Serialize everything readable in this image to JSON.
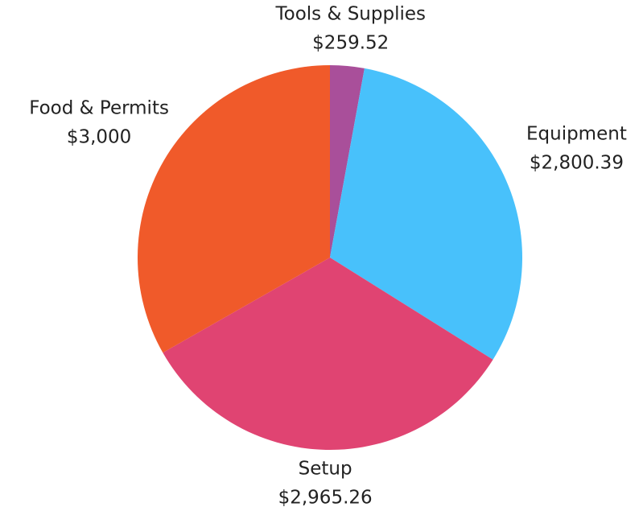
{
  "chart_data": {
    "type": "pie",
    "categories": [
      "Tools & Supplies",
      "Equipment",
      "Setup",
      "Food & Permits"
    ],
    "values": [
      259.52,
      2800.39,
      2965.26,
      3000
    ],
    "value_labels": [
      "$259.52",
      "$2,800.39",
      "$2,965.26",
      "$3,000"
    ],
    "colors": [
      "#a94f9a",
      "#48c1fb",
      "#e04472",
      "#f05a2a"
    ]
  }
}
